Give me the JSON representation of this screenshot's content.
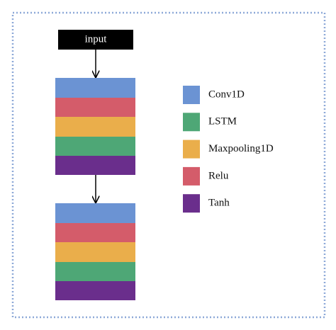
{
  "input": "input",
  "legend": [
    {
      "label": "Conv1D",
      "color": "#6b93d3"
    },
    {
      "label": "LSTM",
      "color": "#4ea776"
    },
    {
      "label": "Maxpooling1D",
      "color": "#eaae4b"
    },
    {
      "label": "Relu",
      "color": "#d45c6a"
    },
    {
      "label": "Tanh",
      "color": "#6a2e8c"
    }
  ]
}
